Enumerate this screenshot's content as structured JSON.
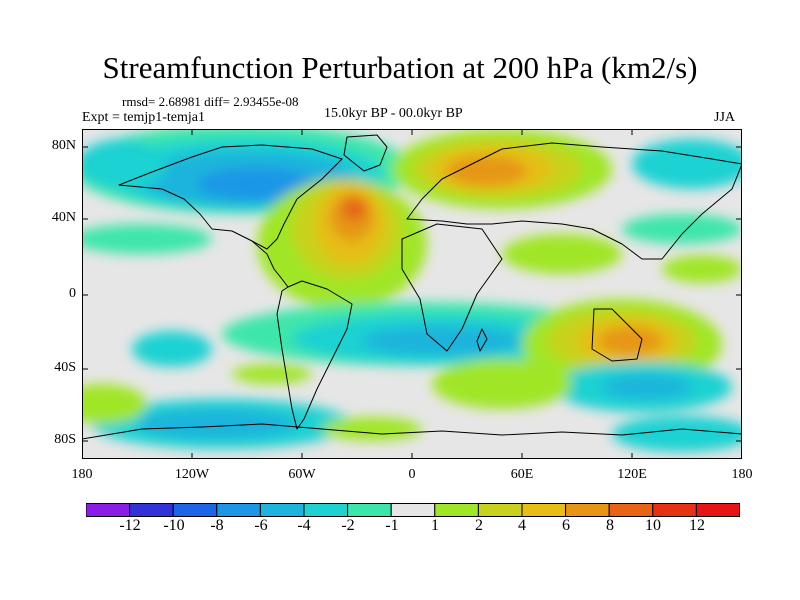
{
  "title": "Streamfunction Perturbation at 200 hPa (km2/s)",
  "stats": "rmsd= 2.68981 diff= 2.93455e-08",
  "expt": "Expt = temjp1-temja1",
  "period": "15.0kyr BP - 00.0kyr BP",
  "season": "JJA",
  "lat_labels": [
    "80N",
    "40N",
    "0",
    "40S",
    "80S"
  ],
  "lon_labels": [
    "180",
    "120W",
    "60W",
    "0",
    "60E",
    "120E",
    "180"
  ],
  "colorbar": {
    "labels": [
      "-12",
      "-10",
      "-8",
      "-6",
      "-4",
      "-2",
      "-1",
      "1",
      "2",
      "4",
      "6",
      "8",
      "10",
      "12"
    ],
    "colors": [
      "#8a1ee6",
      "#3232d8",
      "#1e64e6",
      "#1e96e6",
      "#1eb4dc",
      "#1ed2d2",
      "#3ce6aa",
      "#e6e6e6",
      "#a0e628",
      "#c8d21e",
      "#e6be14",
      "#e69614",
      "#e66414",
      "#e63214",
      "#e61414"
    ]
  }
}
